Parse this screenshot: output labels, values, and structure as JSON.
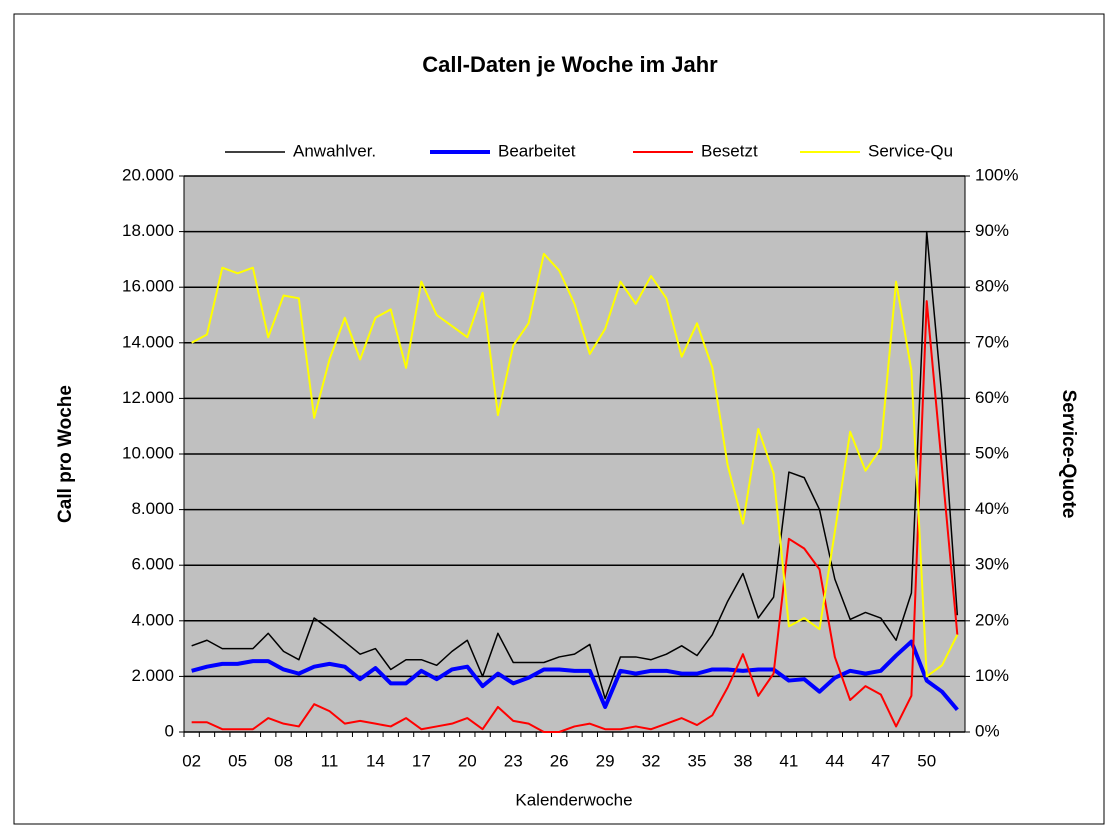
{
  "chart_data": {
    "type": "line",
    "title": "Call-Daten je Woche im Jahr",
    "x_label": "Kalenderwoche",
    "y_label": "Call pro Woche",
    "y2_label": "Service-Quote",
    "legend": "top",
    "grid": true,
    "categories": [
      "02",
      null,
      null,
      "05",
      null,
      null,
      "08",
      null,
      null,
      "11",
      null,
      null,
      "14",
      null,
      null,
      "17",
      null,
      null,
      "20",
      null,
      null,
      "23",
      null,
      null,
      "26",
      null,
      null,
      "29",
      null,
      null,
      "32",
      null,
      null,
      "35",
      null,
      null,
      "38",
      null,
      null,
      "41",
      null,
      null,
      "44",
      null,
      null,
      "47",
      null,
      null,
      "50",
      null,
      null
    ],
    "ylim": [
      0,
      20000
    ],
    "yticks": [
      {
        "value": 0,
        "label": "0"
      },
      {
        "value": 2000,
        "label": "2.000"
      },
      {
        "value": 4000,
        "label": "4.000"
      },
      {
        "value": 6000,
        "label": "6.000"
      },
      {
        "value": 8000,
        "label": "8.000"
      },
      {
        "value": 10000,
        "label": "10.000"
      },
      {
        "value": 12000,
        "label": "12.000"
      },
      {
        "value": 14000,
        "label": "14.000"
      },
      {
        "value": 16000,
        "label": "16.000"
      },
      {
        "value": 18000,
        "label": "18.000"
      },
      {
        "value": 20000,
        "label": "20.000"
      }
    ],
    "y2lim": [
      0,
      100
    ],
    "y2ticks": [
      {
        "value": 0,
        "label": "0%"
      },
      {
        "value": 10,
        "label": "10%"
      },
      {
        "value": 20,
        "label": "20%"
      },
      {
        "value": 30,
        "label": "30%"
      },
      {
        "value": 40,
        "label": "40%"
      },
      {
        "value": 50,
        "label": "50%"
      },
      {
        "value": 60,
        "label": "60%"
      },
      {
        "value": 70,
        "label": "70%"
      },
      {
        "value": 80,
        "label": "80%"
      },
      {
        "value": 90,
        "label": "90%"
      },
      {
        "value": 100,
        "label": "100%"
      }
    ],
    "series": [
      {
        "name": "Anwahlver.",
        "color": "#000000",
        "width": 1.5,
        "values": [
          3100,
          3300,
          3000,
          3000,
          3000,
          3550,
          2900,
          2600,
          4100,
          3700,
          3250,
          2800,
          3000,
          2250,
          2600,
          2600,
          2400,
          2900,
          3300,
          2000,
          3550,
          2500,
          2500,
          2500,
          2700,
          2800,
          3150,
          1200,
          2700,
          2700,
          2600,
          2800,
          3100,
          2750,
          3500,
          4700,
          5700,
          4100,
          4850,
          9350,
          9150,
          8000,
          5500,
          4050,
          4300,
          4100,
          3300,
          5000,
          18000,
          12000,
          4200
        ]
      },
      {
        "name": "Bearbeitet",
        "color": "#0000ff",
        "width": 4,
        "values": [
          2200,
          2350,
          2450,
          2450,
          2550,
          2550,
          2250,
          2100,
          2350,
          2450,
          2350,
          1900,
          2300,
          1750,
          1750,
          2200,
          1900,
          2250,
          2350,
          1650,
          2100,
          1750,
          1950,
          2250,
          2250,
          2200,
          2200,
          900,
          2200,
          2100,
          2200,
          2200,
          2100,
          2100,
          2250,
          2250,
          2200,
          2250,
          2250,
          1850,
          1900,
          1450,
          1950,
          2200,
          2100,
          2200,
          2750,
          3250,
          1850,
          1450,
          800
        ]
      },
      {
        "name": "Besetzt",
        "color": "#ff0000",
        "width": 2,
        "values": [
          350,
          350,
          100,
          100,
          100,
          500,
          300,
          200,
          1000,
          750,
          300,
          400,
          300,
          200,
          500,
          100,
          200,
          300,
          500,
          100,
          900,
          400,
          300,
          0,
          0,
          200,
          300,
          100,
          100,
          200,
          100,
          300,
          500,
          250,
          600,
          1600,
          2800,
          1300,
          2100,
          6950,
          6600,
          5850,
          2700,
          1150,
          1650,
          1350,
          200,
          1300,
          15500,
          9500,
          3500
        ]
      },
      {
        "name": "Service-Qu",
        "color": "#ffff00",
        "width": 2,
        "axis": "y2",
        "values": [
          70,
          71.5,
          83.5,
          82.5,
          83.5,
          71,
          78.5,
          78,
          56.5,
          67,
          74.5,
          67,
          74.5,
          76,
          65.5,
          81,
          75,
          73,
          71,
          79,
          57,
          69.5,
          73.5,
          86,
          83,
          77,
          68,
          72.5,
          81,
          77,
          82,
          78,
          67.5,
          73.5,
          65.5,
          48,
          37.5,
          54.5,
          46.5,
          19,
          20.5,
          18.5,
          36,
          54,
          47,
          51,
          81,
          65,
          10,
          12,
          17.5
        ]
      }
    ]
  }
}
